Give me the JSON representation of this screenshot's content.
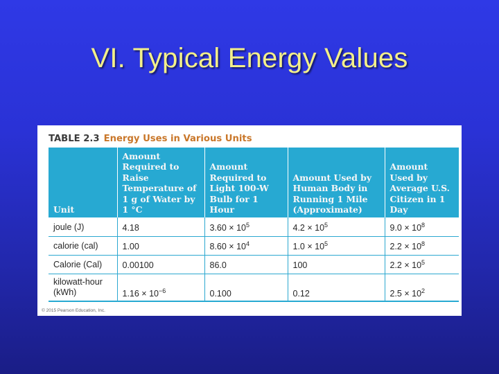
{
  "slide": {
    "title": "VI. Typical Energy Values"
  },
  "table": {
    "number": "TABLE 2.3",
    "title": "Energy Uses in Various Units",
    "headers": [
      "Unit",
      "Amount Required to Raise Temperature of 1 g of Water by 1 °C",
      "Amount Required to Light 100-W Bulb for 1 Hour",
      "Amount Used by Human Body in Running 1 Mile (Approximate)",
      "Amount Used by Average U.S. Citizen in 1 Day"
    ],
    "rows": [
      {
        "unit": "joule (J)",
        "cells": [
          {
            "text": "4.18",
            "base": "",
            "exp": ""
          },
          {
            "text": "",
            "base": "3.60 × 10",
            "exp": "5"
          },
          {
            "text": "",
            "base": "4.2 × 10",
            "exp": "5"
          },
          {
            "text": "",
            "base": "9.0 × 10",
            "exp": "8"
          }
        ]
      },
      {
        "unit": "calorie (cal)",
        "cells": [
          {
            "text": "1.00",
            "base": "",
            "exp": ""
          },
          {
            "text": "",
            "base": "8.60 × 10",
            "exp": "4"
          },
          {
            "text": "",
            "base": "1.0 × 10",
            "exp": "5"
          },
          {
            "text": "",
            "base": "2.2 × 10",
            "exp": "8"
          }
        ]
      },
      {
        "unit": "Calorie (Cal)",
        "cells": [
          {
            "text": "0.00100",
            "base": "",
            "exp": ""
          },
          {
            "text": "86.0",
            "base": "",
            "exp": ""
          },
          {
            "text": "100",
            "base": "",
            "exp": ""
          },
          {
            "text": "",
            "base": "2.2 × 10",
            "exp": "5"
          }
        ]
      },
      {
        "unit": "kilowatt-hour\n(kWh)",
        "cells": [
          {
            "text": "",
            "base": "1.16 × 10",
            "exp": "−6"
          },
          {
            "text": "0.100",
            "base": "",
            "exp": ""
          },
          {
            "text": "0.12",
            "base": "",
            "exp": ""
          },
          {
            "text": "",
            "base": "2.5 × 10",
            "exp": "2"
          }
        ]
      }
    ],
    "copyright": "© 2015 Pearson Education, Inc."
  }
}
